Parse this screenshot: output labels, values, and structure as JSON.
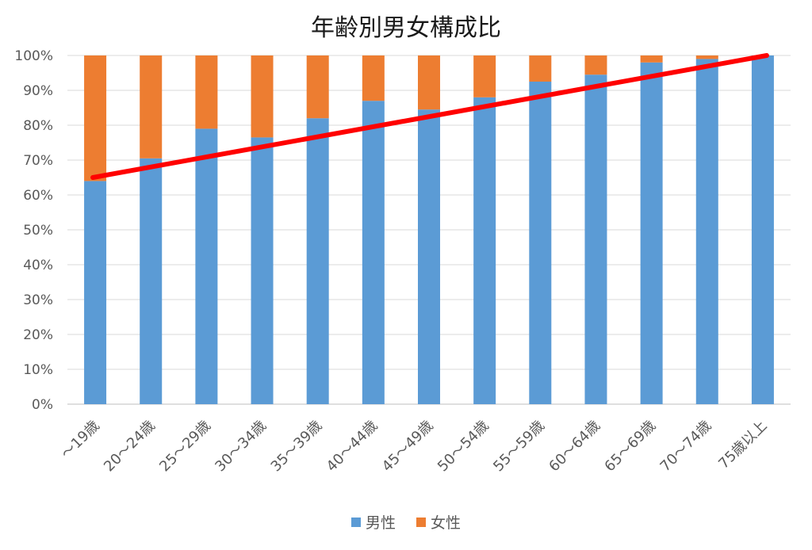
{
  "chart_data": {
    "type": "bar",
    "stacked": true,
    "title": "年齢別男女構成比",
    "categories": [
      "～19歳",
      "20～24歳",
      "25～29歳",
      "30～34歳",
      "35～39歳",
      "40～44歳",
      "45～49歳",
      "50～54歳",
      "55～59歳",
      "60～64歳",
      "65～69歳",
      "70～74歳",
      "75歳以上"
    ],
    "series": [
      {
        "name": "男性",
        "color": "#5b9bd5",
        "values": [
          64,
          70.5,
          79,
          76.5,
          82,
          87,
          84.5,
          88,
          92.5,
          94.5,
          98,
          99,
          100
        ]
      },
      {
        "name": "女性",
        "color": "#ed7d31",
        "values": [
          36,
          29.5,
          21,
          23.5,
          18,
          13,
          15.5,
          12,
          7.5,
          5.5,
          2,
          1,
          0
        ]
      }
    ],
    "trendline": {
      "color": "#ff0000",
      "start_value": 65,
      "end_value": 100
    },
    "y_ticks": [
      "0%",
      "10%",
      "20%",
      "30%",
      "40%",
      "50%",
      "60%",
      "70%",
      "80%",
      "90%",
      "100%"
    ],
    "ylim": [
      0,
      100
    ],
    "grid": true,
    "legend_position": "bottom"
  }
}
